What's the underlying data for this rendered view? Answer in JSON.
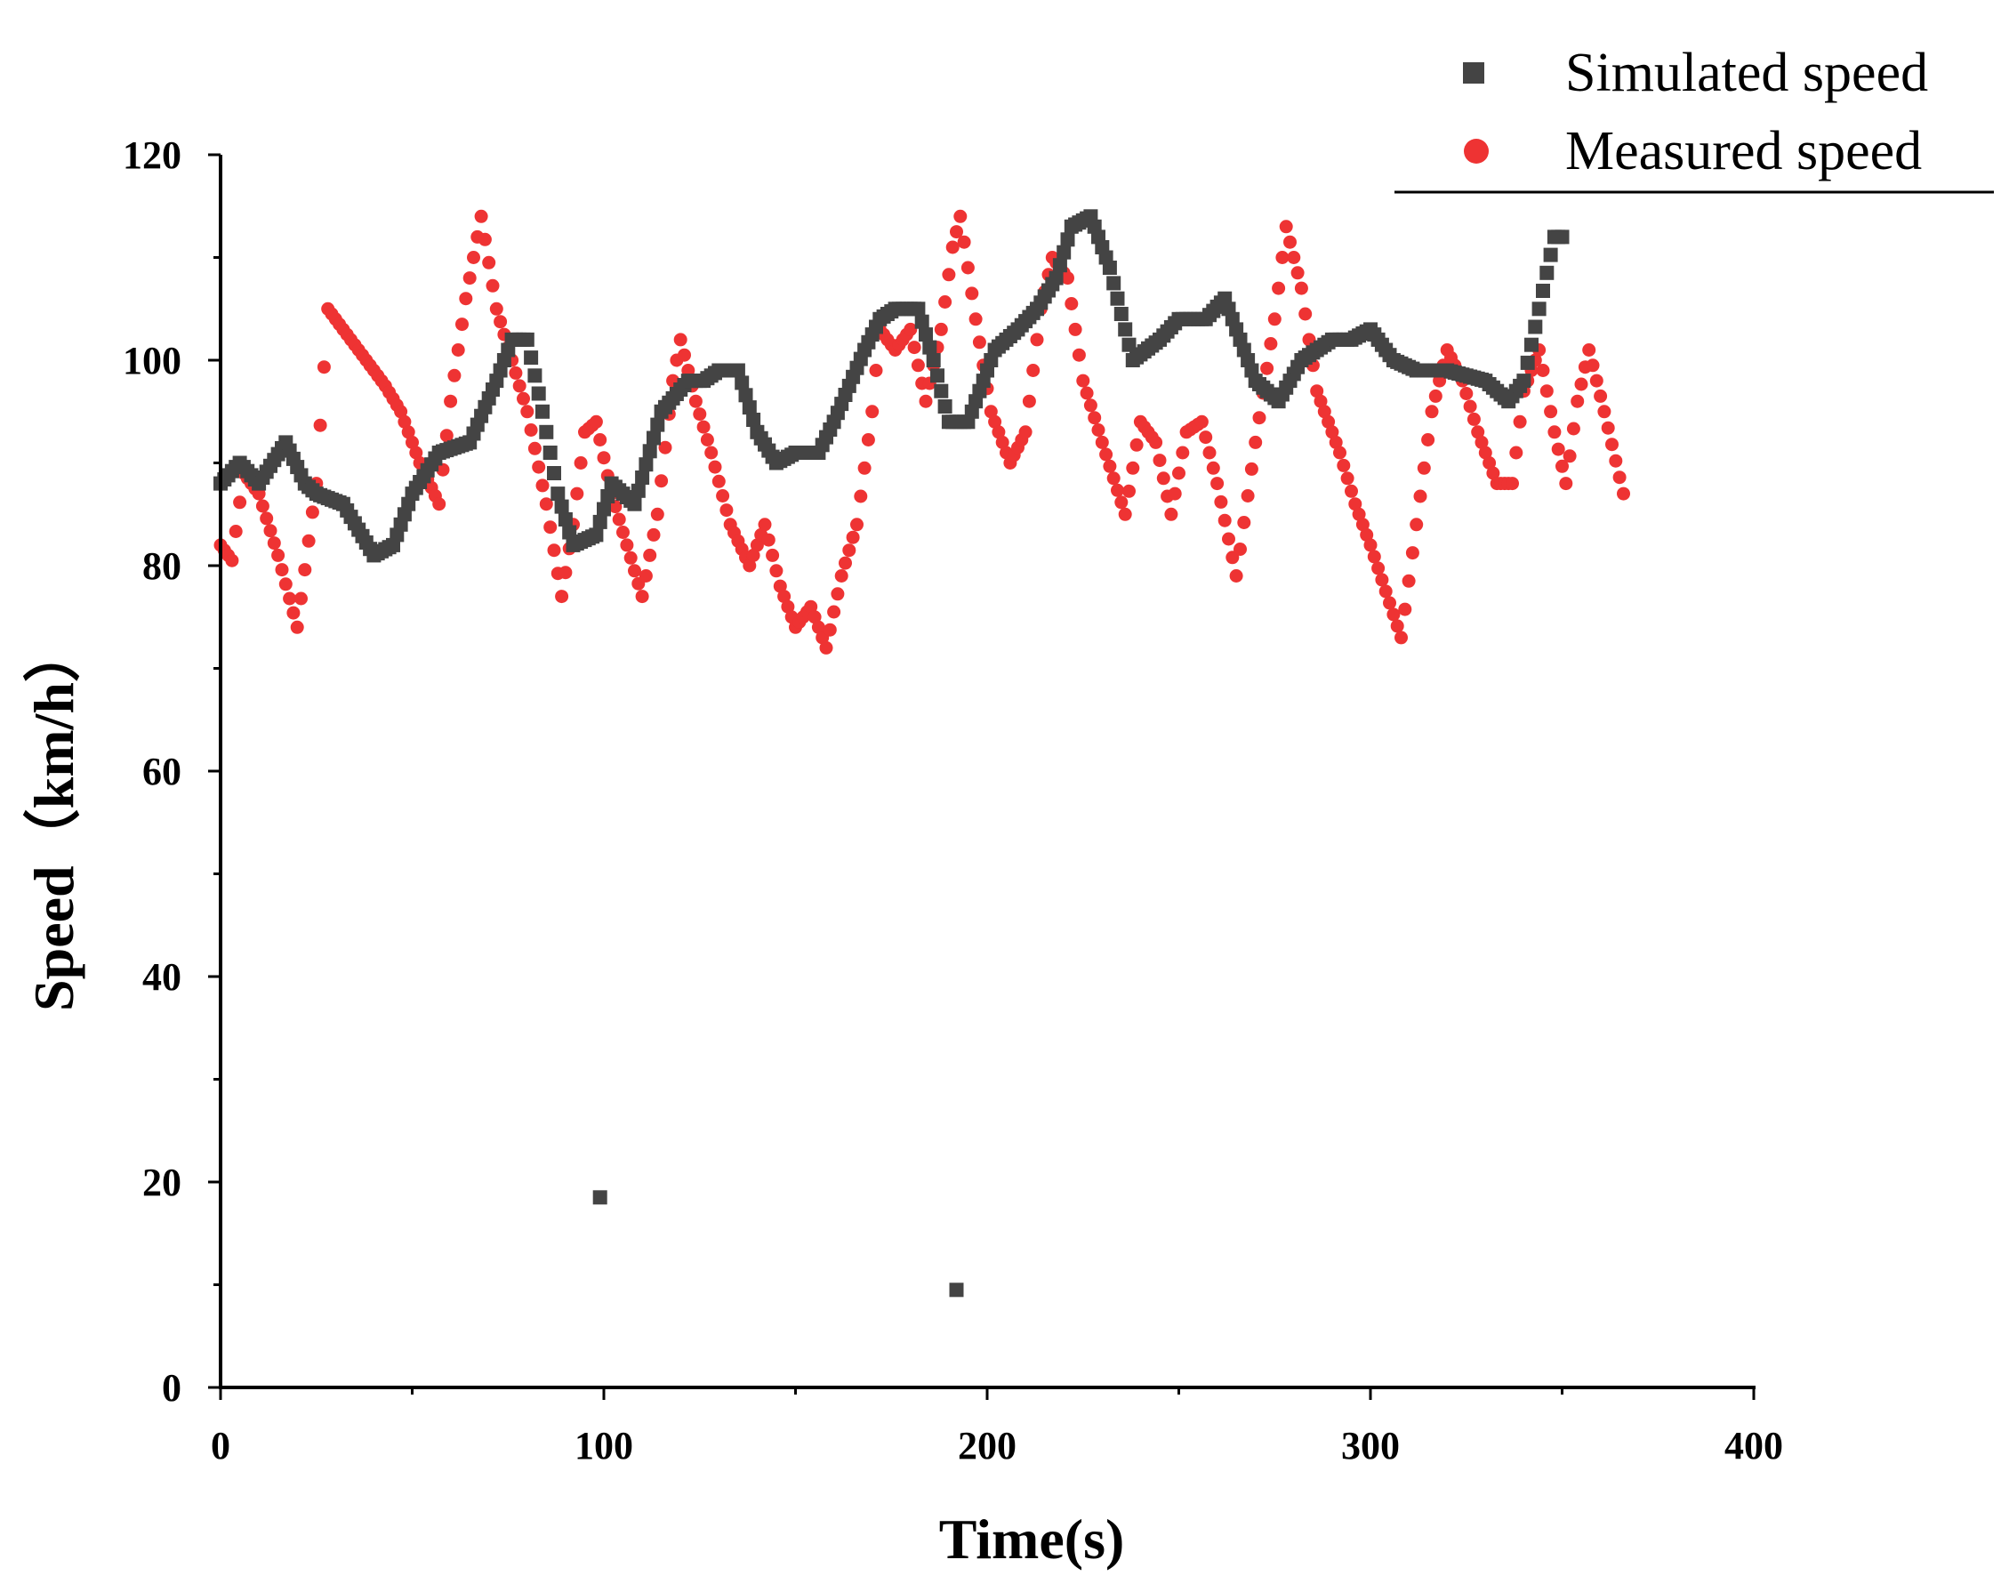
{
  "chart_data": {
    "type": "scatter",
    "title": "",
    "xlabel": "Time(s)",
    "ylabel": "Speed（km/h）",
    "xlim": [
      0,
      400
    ],
    "ylim": [
      0,
      120
    ],
    "xticks": [
      0,
      100,
      200,
      300,
      400
    ],
    "yticks": [
      0,
      20,
      40,
      60,
      80,
      100,
      120
    ],
    "grid": false,
    "legend_position": "top-right",
    "series": [
      {
        "name": "Simulated speed",
        "marker": "square",
        "color": "#444444",
        "keypoints": [
          [
            0,
            88
          ],
          [
            5,
            90
          ],
          [
            10,
            88
          ],
          [
            17,
            92
          ],
          [
            22,
            88
          ],
          [
            25,
            87
          ],
          [
            32,
            86
          ],
          [
            40,
            81
          ],
          [
            45,
            82
          ],
          [
            50,
            87
          ],
          [
            57,
            91
          ],
          [
            65,
            92
          ],
          [
            72,
            98
          ],
          [
            76,
            102
          ],
          [
            80,
            102
          ],
          [
            84,
            95
          ],
          [
            88,
            87
          ],
          [
            92,
            82
          ],
          [
            98,
            83
          ],
          [
            102,
            88
          ],
          [
            108,
            86
          ],
          [
            115,
            95
          ],
          [
            122,
            98
          ],
          [
            126,
            98
          ],
          [
            130,
            99
          ],
          [
            135,
            99
          ],
          [
            140,
            93
          ],
          [
            145,
            90
          ],
          [
            150,
            91
          ],
          [
            156,
            91
          ],
          [
            160,
            94
          ],
          [
            168,
            101
          ],
          [
            172,
            104
          ],
          [
            176,
            105
          ],
          [
            182,
            105
          ],
          [
            186,
            100
          ],
          [
            190,
            94
          ],
          [
            195,
            94
          ],
          [
            202,
            101
          ],
          [
            208,
            103
          ],
          [
            213,
            105
          ],
          [
            218,
            108
          ],
          [
            222,
            113
          ],
          [
            227,
            114
          ],
          [
            232,
            109
          ],
          [
            238,
            100
          ],
          [
            245,
            102
          ],
          [
            250,
            104
          ],
          [
            257,
            104
          ],
          [
            262,
            106
          ],
          [
            266,
            102
          ],
          [
            270,
            98
          ],
          [
            276,
            96
          ],
          [
            282,
            100
          ],
          [
            290,
            102
          ],
          [
            295,
            102
          ],
          [
            300,
            103
          ],
          [
            306,
            100
          ],
          [
            312,
            99
          ],
          [
            320,
            99
          ],
          [
            330,
            98
          ],
          [
            336,
            96
          ],
          [
            340,
            98
          ],
          [
            344,
            105
          ],
          [
            348,
            112
          ],
          [
            350,
            112
          ]
        ],
        "outliers": [
          [
            99,
            18.5
          ],
          [
            192,
            9.5
          ]
        ]
      },
      {
        "name": "Measured speed",
        "marker": "circle",
        "color": "#ee3333",
        "keypoints": [
          [
            0,
            82
          ],
          [
            3,
            80.5
          ],
          [
            6,
            89
          ],
          [
            10,
            87
          ],
          [
            15,
            81
          ],
          [
            20,
            74
          ],
          [
            25,
            88
          ],
          [
            28,
            105
          ],
          [
            32,
            103
          ],
          [
            38,
            100
          ],
          [
            43,
            97.5
          ],
          [
            47,
            95
          ],
          [
            52,
            90
          ],
          [
            57,
            86
          ],
          [
            60,
            96
          ],
          [
            64,
            106
          ],
          [
            68,
            114
          ],
          [
            72,
            105
          ],
          [
            76,
            100
          ],
          [
            80,
            95
          ],
          [
            85,
            86
          ],
          [
            89,
            77
          ],
          [
            92,
            84
          ],
          [
            95,
            93
          ],
          [
            98,
            94
          ],
          [
            102,
            87
          ],
          [
            106,
            82
          ],
          [
            110,
            77
          ],
          [
            114,
            85
          ],
          [
            118,
            98
          ],
          [
            120,
            102
          ],
          [
            124,
            96
          ],
          [
            128,
            91
          ],
          [
            133,
            84
          ],
          [
            138,
            80
          ],
          [
            142,
            84
          ],
          [
            146,
            78
          ],
          [
            150,
            74
          ],
          [
            154,
            76
          ],
          [
            158,
            72
          ],
          [
            162,
            79
          ],
          [
            166,
            84
          ],
          [
            170,
            95
          ],
          [
            172,
            103
          ],
          [
            176,
            101
          ],
          [
            180,
            103
          ],
          [
            184,
            96
          ],
          [
            188,
            103
          ],
          [
            191,
            111
          ],
          [
            193,
            114
          ],
          [
            197,
            104
          ],
          [
            201,
            95
          ],
          [
            206,
            90
          ],
          [
            210,
            93
          ],
          [
            214,
            105
          ],
          [
            217,
            110
          ],
          [
            221,
            108
          ],
          [
            225,
            98
          ],
          [
            230,
            92
          ],
          [
            236,
            85
          ],
          [
            240,
            94
          ],
          [
            244,
            92
          ],
          [
            248,
            85
          ],
          [
            252,
            93
          ],
          [
            256,
            94
          ],
          [
            260,
            88
          ],
          [
            265,
            79
          ],
          [
            270,
            92
          ],
          [
            275,
            104
          ],
          [
            278,
            113
          ],
          [
            282,
            107
          ],
          [
            286,
            97
          ],
          [
            292,
            91
          ],
          [
            296,
            86
          ],
          [
            300,
            82
          ],
          [
            308,
            73
          ],
          [
            312,
            84
          ],
          [
            316,
            95
          ],
          [
            320,
            101
          ],
          [
            324,
            98
          ],
          [
            328,
            93
          ],
          [
            333,
            88
          ],
          [
            337,
            88
          ],
          [
            340,
            97
          ],
          [
            344,
            101
          ],
          [
            348,
            93
          ],
          [
            351,
            88
          ],
          [
            354,
            96
          ],
          [
            357,
            101
          ],
          [
            361,
            95
          ],
          [
            366,
            87
          ]
        ]
      }
    ]
  }
}
